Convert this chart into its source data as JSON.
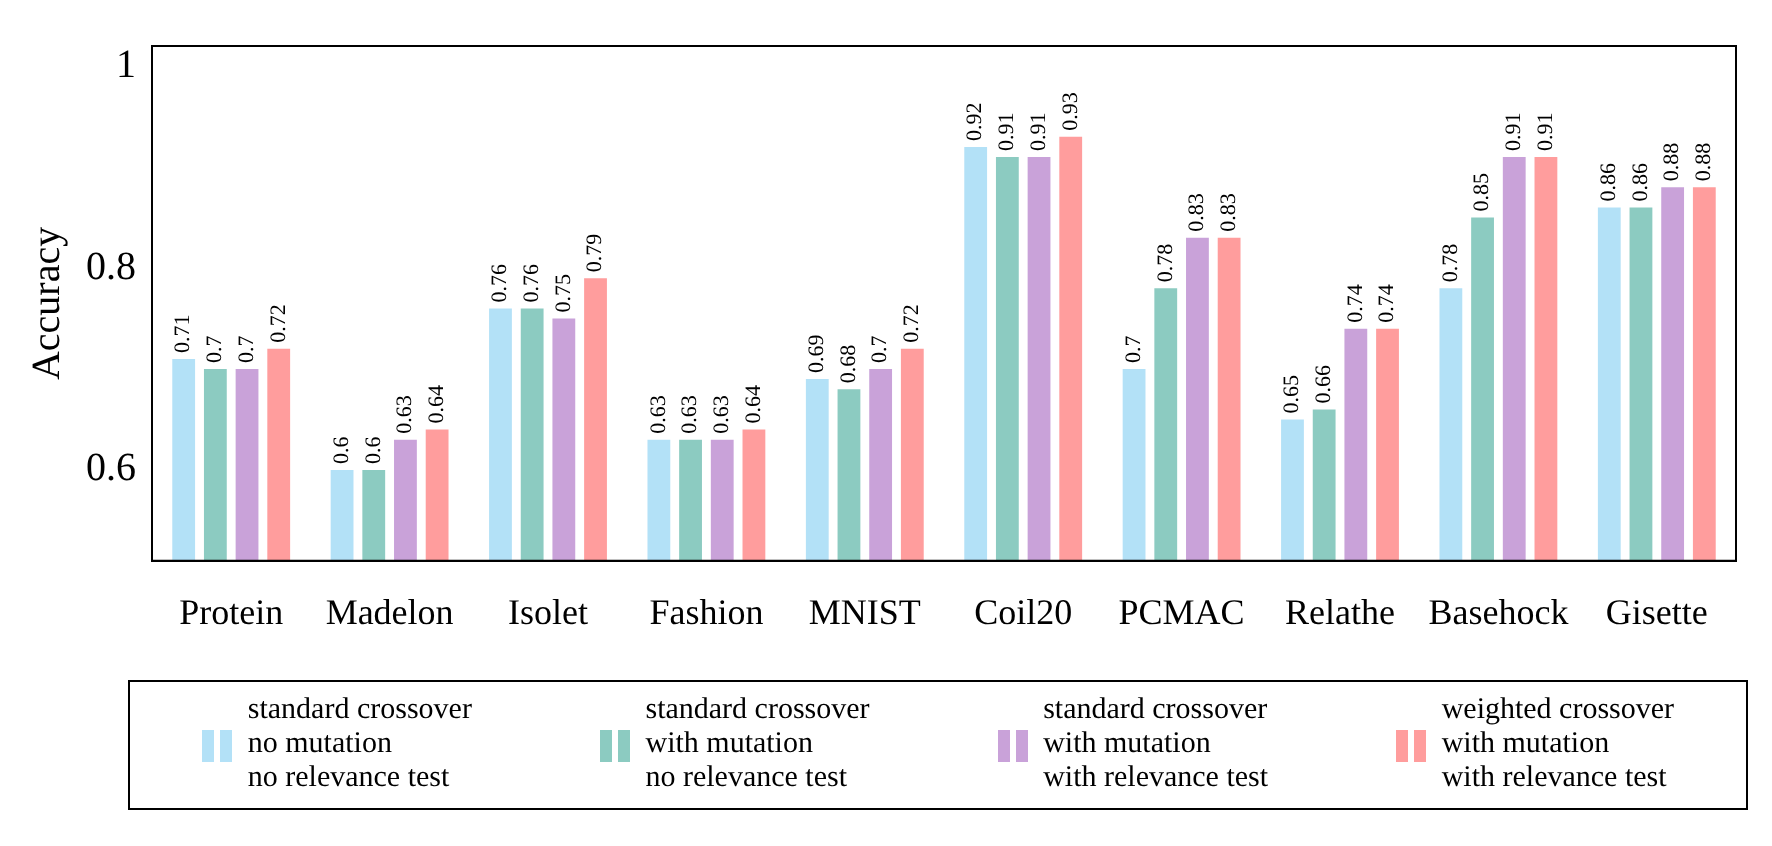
{
  "chart_data": {
    "type": "bar",
    "ylabel": "Accuracy",
    "categories": [
      "Protein",
      "Madelon",
      "Isolet",
      "Fashion",
      "MNIST",
      "Coil20",
      "PCMAC",
      "Relathe",
      "Basehock",
      "Gisette"
    ],
    "series": [
      {
        "name": "standard crossover\nno mutation\nno relevance test",
        "color": "#b3e1f7",
        "values": [
          0.71,
          0.6,
          0.76,
          0.63,
          0.69,
          0.92,
          0.7,
          0.65,
          0.78,
          0.86
        ]
      },
      {
        "name": "standard crossover\nwith mutation\nno relevance test",
        "color": "#8ccbc1",
        "values": [
          0.7,
          0.6,
          0.76,
          0.63,
          0.68,
          0.91,
          0.78,
          0.66,
          0.85,
          0.86
        ]
      },
      {
        "name": "standard crossover\nwith mutation\nwith relevance test",
        "color": "#c9a2d9",
        "values": [
          0.7,
          0.63,
          0.75,
          0.63,
          0.7,
          0.91,
          0.83,
          0.74,
          0.91,
          0.88
        ]
      },
      {
        "name": "weighted crossover\nwith mutation\nwith relevance test",
        "color": "#ff9d9d",
        "values": [
          0.72,
          0.64,
          0.79,
          0.64,
          0.72,
          0.93,
          0.83,
          0.74,
          0.91,
          0.88
        ]
      }
    ],
    "ylim": [
      0.51,
      1.02
    ],
    "yticks": [
      0.6,
      0.8,
      1
    ],
    "grid": false,
    "legend": "bottom",
    "data_labels": true
  }
}
